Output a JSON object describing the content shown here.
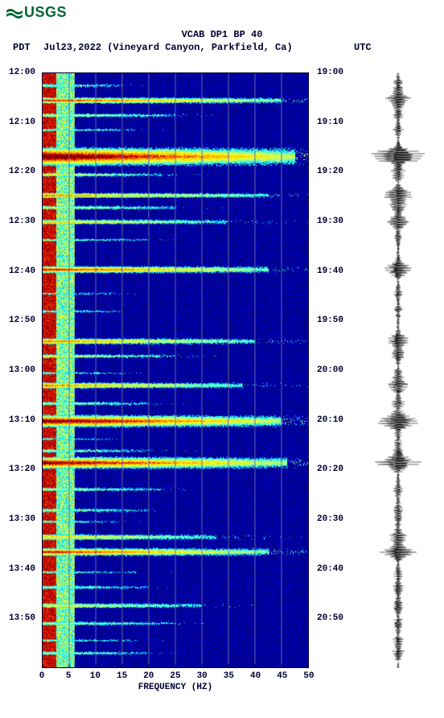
{
  "logo": {
    "text": "USGS",
    "color": "#006633"
  },
  "title": "VCAB DP1 BP 40",
  "subtitle_date": "Jul23,2022 (Vineyard Canyon, Parkfield, Ca)",
  "tz_left": "PDT",
  "tz_right": "UTC",
  "x_axis": {
    "title": "FREQUENCY (HZ)",
    "ticks": [
      0,
      5,
      10,
      15,
      20,
      25,
      30,
      35,
      40,
      45,
      50
    ],
    "min": 0,
    "max": 50
  },
  "y_axis_left": {
    "labels": [
      "12:00",
      "12:10",
      "12:20",
      "12:30",
      "12:40",
      "12:50",
      "13:00",
      "13:10",
      "13:20",
      "13:30",
      "13:40",
      "13:50"
    ]
  },
  "y_axis_right": {
    "labels": [
      "19:00",
      "19:10",
      "19:20",
      "19:30",
      "19:40",
      "19:50",
      "20:00",
      "20:10",
      "20:20",
      "20:30",
      "20:40",
      "20:50"
    ]
  },
  "colormap": {
    "stops": [
      "#000033",
      "#000088",
      "#0000cc",
      "#0033ff",
      "#0099ff",
      "#00eeff",
      "#66ffcc",
      "#ccff66",
      "#ffff00",
      "#ffcc00",
      "#ff6600",
      "#cc0000",
      "#880000"
    ]
  },
  "spectrogram": {
    "background": "#0000aa",
    "events": [
      {
        "t": 0.02,
        "w": 0.004,
        "intensity": 0.4,
        "reach": 0.3
      },
      {
        "t": 0.045,
        "w": 0.006,
        "intensity": 0.8,
        "reach": 0.9
      },
      {
        "t": 0.07,
        "w": 0.004,
        "intensity": 0.5,
        "reach": 0.5
      },
      {
        "t": 0.095,
        "w": 0.003,
        "intensity": 0.4,
        "reach": 0.35
      },
      {
        "t": 0.14,
        "w": 0.018,
        "intensity": 1.0,
        "reach": 0.95
      },
      {
        "t": 0.17,
        "w": 0.004,
        "intensity": 0.5,
        "reach": 0.45
      },
      {
        "t": 0.205,
        "w": 0.005,
        "intensity": 0.7,
        "reach": 0.85
      },
      {
        "t": 0.225,
        "w": 0.004,
        "intensity": 0.5,
        "reach": 0.5
      },
      {
        "t": 0.25,
        "w": 0.005,
        "intensity": 0.6,
        "reach": 0.7
      },
      {
        "t": 0.28,
        "w": 0.003,
        "intensity": 0.4,
        "reach": 0.4
      },
      {
        "t": 0.33,
        "w": 0.007,
        "intensity": 0.8,
        "reach": 0.85
      },
      {
        "t": 0.37,
        "w": 0.003,
        "intensity": 0.3,
        "reach": 0.3
      },
      {
        "t": 0.4,
        "w": 0.003,
        "intensity": 0.35,
        "reach": 0.3
      },
      {
        "t": 0.45,
        "w": 0.006,
        "intensity": 0.7,
        "reach": 0.8
      },
      {
        "t": 0.475,
        "w": 0.004,
        "intensity": 0.5,
        "reach": 0.5
      },
      {
        "t": 0.505,
        "w": 0.003,
        "intensity": 0.35,
        "reach": 0.3
      },
      {
        "t": 0.525,
        "w": 0.006,
        "intensity": 0.7,
        "reach": 0.75
      },
      {
        "t": 0.555,
        "w": 0.004,
        "intensity": 0.45,
        "reach": 0.4
      },
      {
        "t": 0.585,
        "w": 0.012,
        "intensity": 0.95,
        "reach": 0.9
      },
      {
        "t": 0.615,
        "w": 0.003,
        "intensity": 0.3,
        "reach": 0.25
      },
      {
        "t": 0.635,
        "w": 0.004,
        "intensity": 0.4,
        "reach": 0.4
      },
      {
        "t": 0.655,
        "w": 0.012,
        "intensity": 0.9,
        "reach": 0.92
      },
      {
        "t": 0.7,
        "w": 0.004,
        "intensity": 0.45,
        "reach": 0.45
      },
      {
        "t": 0.735,
        "w": 0.004,
        "intensity": 0.4,
        "reach": 0.4
      },
      {
        "t": 0.755,
        "w": 0.003,
        "intensity": 0.35,
        "reach": 0.3
      },
      {
        "t": 0.78,
        "w": 0.006,
        "intensity": 0.6,
        "reach": 0.65
      },
      {
        "t": 0.805,
        "w": 0.008,
        "intensity": 0.8,
        "reach": 0.85
      },
      {
        "t": 0.84,
        "w": 0.003,
        "intensity": 0.35,
        "reach": 0.35
      },
      {
        "t": 0.865,
        "w": 0.004,
        "intensity": 0.4,
        "reach": 0.4
      },
      {
        "t": 0.895,
        "w": 0.005,
        "intensity": 0.55,
        "reach": 0.6
      },
      {
        "t": 0.925,
        "w": 0.004,
        "intensity": 0.45,
        "reach": 0.5
      },
      {
        "t": 0.955,
        "w": 0.003,
        "intensity": 0.35,
        "reach": 0.35
      },
      {
        "t": 0.975,
        "w": 0.004,
        "intensity": 0.4,
        "reach": 0.4
      }
    ],
    "grid_color": "#6666aa"
  },
  "seismogram": {
    "color": "#000000",
    "baseline_amp": 0.04,
    "events": [
      {
        "t": 0.02,
        "amp": 0.15
      },
      {
        "t": 0.045,
        "amp": 0.4
      },
      {
        "t": 0.07,
        "amp": 0.18
      },
      {
        "t": 0.095,
        "amp": 0.12
      },
      {
        "t": 0.14,
        "amp": 0.95
      },
      {
        "t": 0.17,
        "amp": 0.2
      },
      {
        "t": 0.205,
        "amp": 0.45
      },
      {
        "t": 0.225,
        "amp": 0.2
      },
      {
        "t": 0.25,
        "amp": 0.3
      },
      {
        "t": 0.28,
        "amp": 0.12
      },
      {
        "t": 0.33,
        "amp": 0.45
      },
      {
        "t": 0.37,
        "amp": 0.1
      },
      {
        "t": 0.4,
        "amp": 0.1
      },
      {
        "t": 0.45,
        "amp": 0.35
      },
      {
        "t": 0.475,
        "amp": 0.18
      },
      {
        "t": 0.505,
        "amp": 0.1
      },
      {
        "t": 0.525,
        "amp": 0.3
      },
      {
        "t": 0.555,
        "amp": 0.15
      },
      {
        "t": 0.585,
        "amp": 0.7
      },
      {
        "t": 0.615,
        "amp": 0.1
      },
      {
        "t": 0.635,
        "amp": 0.12
      },
      {
        "t": 0.655,
        "amp": 0.6
      },
      {
        "t": 0.7,
        "amp": 0.15
      },
      {
        "t": 0.735,
        "amp": 0.12
      },
      {
        "t": 0.755,
        "amp": 0.1
      },
      {
        "t": 0.78,
        "amp": 0.25
      },
      {
        "t": 0.805,
        "amp": 0.5
      },
      {
        "t": 0.84,
        "amp": 0.12
      },
      {
        "t": 0.865,
        "amp": 0.15
      },
      {
        "t": 0.895,
        "amp": 0.22
      },
      {
        "t": 0.925,
        "amp": 0.18
      },
      {
        "t": 0.955,
        "amp": 0.12
      },
      {
        "t": 0.975,
        "amp": 0.14
      }
    ]
  }
}
